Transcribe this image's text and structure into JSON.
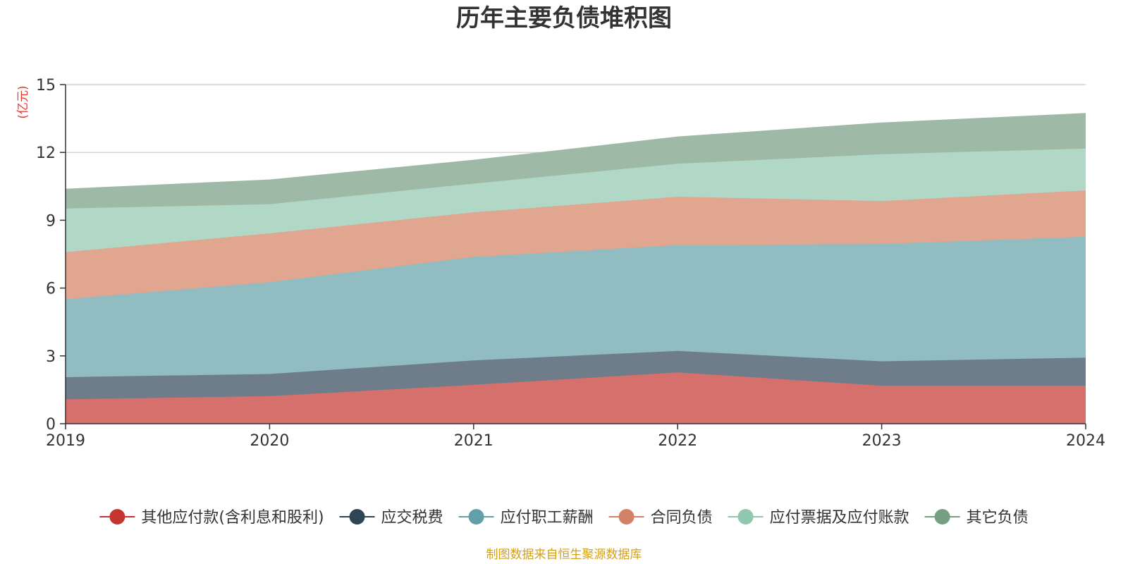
{
  "chart_data": {
    "type": "area",
    "stacked": true,
    "title": "历年主要负债堆积图",
    "unit_label": "(亿元)",
    "source_note": "制图数据来自恒生聚源数据库",
    "categories": [
      "2019",
      "2020",
      "2021",
      "2022",
      "2023",
      "2024"
    ],
    "ylim": [
      0,
      15
    ],
    "yticks": [
      0,
      3,
      6,
      9,
      12,
      15
    ],
    "grid": true,
    "legend_position": "bottom",
    "series": [
      {
        "name": "其他应付款(含利息和股利)",
        "color": "#c23531",
        "fill": "#d6706d",
        "values": [
          1.08,
          1.22,
          1.72,
          2.27,
          1.68,
          1.68
        ]
      },
      {
        "name": "应交税费",
        "color": "#2f4554",
        "fill": "#6e7d89",
        "values": [
          0.98,
          0.98,
          1.08,
          0.95,
          1.08,
          1.24
        ]
      },
      {
        "name": "应付职工薪酬",
        "color": "#61a0a8",
        "fill": "#91bcc2",
        "values": [
          3.45,
          4.06,
          4.58,
          4.68,
          5.19,
          5.35
        ]
      },
      {
        "name": "合同负债",
        "color": "#d48265",
        "fill": "#e0a690",
        "values": [
          2.08,
          2.16,
          1.97,
          2.14,
          1.9,
          2.05
        ]
      },
      {
        "name": "应付票据及应付账款",
        "color": "#91c7ae",
        "fill": "#b1d8c7",
        "values": [
          1.93,
          1.29,
          1.27,
          1.46,
          2.07,
          1.85
        ]
      },
      {
        "name": "其它负债",
        "color": "#749f83",
        "fill": "#9eb9a6",
        "values": [
          0.85,
          1.07,
          1.03,
          1.18,
          1.38,
          1.55
        ]
      }
    ]
  }
}
